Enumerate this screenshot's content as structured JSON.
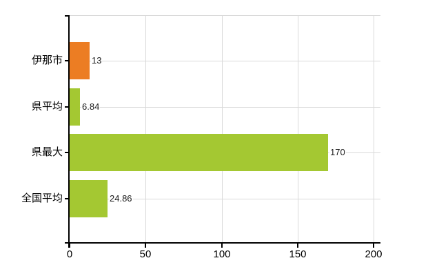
{
  "chart_data": {
    "type": "bar",
    "orientation": "horizontal",
    "title": "",
    "categories": [
      "伊那市",
      "県平均",
      "県最大",
      "全国平均"
    ],
    "values": [
      13,
      6.84,
      170,
      24.86
    ],
    "value_labels": [
      "13",
      "6.84",
      "170",
      "24.86"
    ],
    "bar_colors": [
      "#EC7D23",
      "#A4C832",
      "#A4C832",
      "#A4C832"
    ],
    "x_ticks": [
      "0",
      "50",
      "100",
      "150",
      "200"
    ],
    "x_tick_values": [
      0,
      50,
      100,
      150,
      200
    ],
    "xlim": [
      0,
      204.5
    ],
    "grid": true,
    "legend": "none",
    "colors": {
      "accent_orange": "#EC7D23",
      "accent_green": "#A4C832",
      "axis": "#000000",
      "gridline": "#D9D9D9",
      "value_label_text": "#1A1A1A",
      "tick_label_text": "#000000",
      "background": "#FFFFFF"
    }
  }
}
